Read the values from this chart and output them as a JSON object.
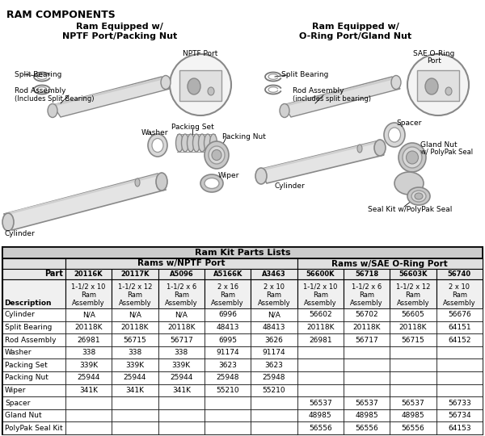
{
  "title": "RAM COMPONENTS",
  "left_diagram_title": "Ram Equipped w/\nNPTF Port/Packing Nut",
  "right_diagram_title": "Ram Equipped w/\nO-Ring Port/Gland Nut",
  "table_title": "Ram Kit Parts Lists",
  "col_group1": "Rams w/NPTF Port",
  "col_group2": "Rams w/SAE O-Ring Port",
  "parts": [
    "20116K",
    "20117K",
    "A5096",
    "A5166K",
    "A3463",
    "56600K",
    "56718",
    "56603K",
    "56740"
  ],
  "sub_headers": [
    "1-1/2 x 10\nRam\nAssembly",
    "1-1/2 x 12\nRam\nAssembly",
    "1-1/2 x 6\nRam\nAssembly",
    "2 x 16\nRam\nAssembly",
    "2 x 10\nRam\nAssembly",
    "1-1/2 x 10\nRam\nAssembly",
    "1-1/2 x 6\nRam\nAssembly",
    "1-1/2 x 12\nRam\nAssembly",
    "2 x 10\nRam\nAssembly"
  ],
  "descriptions": [
    "Cylinder",
    "Split Bearing",
    "Rod Assembly",
    "Washer",
    "Packing Set",
    "Packing Nut",
    "Wiper",
    "Spacer",
    "Gland Nut",
    "PolyPak Seal Kit"
  ],
  "table_data": [
    [
      "N/A",
      "N/A",
      "N/A",
      "6996",
      "N/A",
      "56602",
      "56702",
      "56605",
      "56676"
    ],
    [
      "20118K",
      "20118K",
      "20118K",
      "48413",
      "48413",
      "20118K",
      "20118K",
      "20118K",
      "64151"
    ],
    [
      "26981",
      "56715",
      "56717",
      "6995",
      "3626",
      "26981",
      "56717",
      "56715",
      "64152"
    ],
    [
      "338",
      "338",
      "338",
      "91174",
      "91174",
      "",
      "",
      "",
      ""
    ],
    [
      "339K",
      "339K",
      "339K",
      "3623",
      "3623",
      "",
      "",
      "",
      ""
    ],
    [
      "25944",
      "25944",
      "25944",
      "25948",
      "25948",
      "",
      "",
      "",
      ""
    ],
    [
      "341K",
      "341K",
      "341K",
      "55210",
      "55210",
      "",
      "",
      "",
      ""
    ],
    [
      "",
      "",
      "",
      "",
      "",
      "56537",
      "56537",
      "56537",
      "56733"
    ],
    [
      "",
      "",
      "",
      "",
      "",
      "48985",
      "48985",
      "48985",
      "56734"
    ],
    [
      "",
      "",
      "",
      "",
      "",
      "56556",
      "56556",
      "56556",
      "64153"
    ]
  ],
  "bg_color": "#ffffff",
  "text_color": "#000000",
  "gray_light": "#e8e8e8",
  "gray_mid": "#c8c8c8",
  "gray_dark": "#888888"
}
